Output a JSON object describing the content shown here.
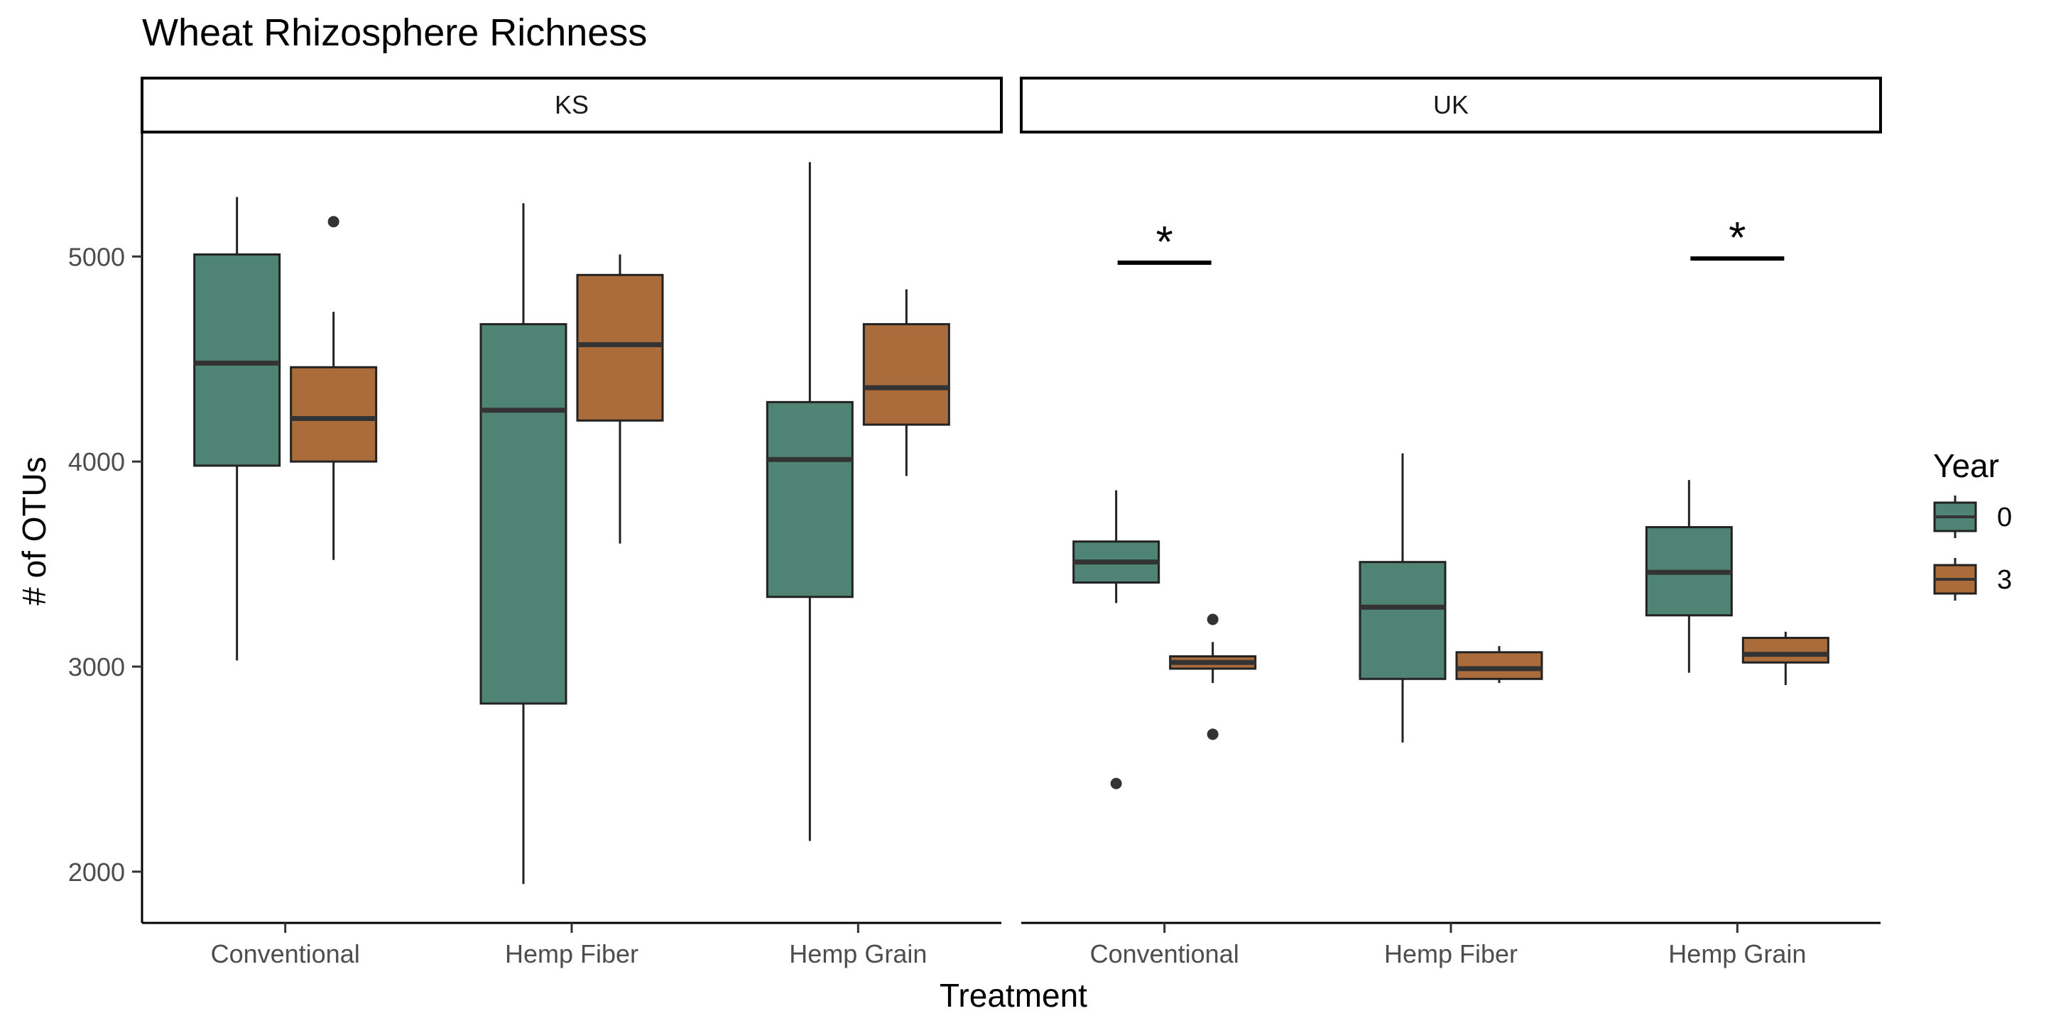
{
  "chart_data": {
    "type": "boxplot",
    "title": "Wheat Rhizosphere Richness",
    "xlabel": "Treatment",
    "ylabel": "# of OTUs",
    "ylim": [
      1750,
      5600
    ],
    "yticks": [
      2000,
      3000,
      4000,
      5000
    ],
    "grid": false,
    "categories": [
      "Conventional",
      "Hemp Fiber",
      "Hemp Grain"
    ],
    "legend": {
      "title": "Year",
      "position": "right",
      "entries": [
        {
          "label": "0",
          "color": "#4f8475"
        },
        {
          "label": "3",
          "color": "#ab6c3b"
        }
      ]
    },
    "facets": [
      {
        "label": "KS",
        "groups": [
          {
            "treatment": "Conventional",
            "year": "0",
            "whisker_low": 3030,
            "q1": 3980,
            "median": 4480,
            "q3": 5010,
            "whisker_high": 5290,
            "outliers": []
          },
          {
            "treatment": "Conventional",
            "year": "3",
            "whisker_low": 3520,
            "q1": 4000,
            "median": 4210,
            "q3": 4460,
            "whisker_high": 4730,
            "outliers": [
              5170
            ]
          },
          {
            "treatment": "Hemp Fiber",
            "year": "0",
            "whisker_low": 1940,
            "q1": 2820,
            "median": 4250,
            "q3": 4670,
            "whisker_high": 5260,
            "outliers": []
          },
          {
            "treatment": "Hemp Fiber",
            "year": "3",
            "whisker_low": 3600,
            "q1": 4200,
            "median": 4570,
            "q3": 4910,
            "whisker_high": 5010,
            "outliers": []
          },
          {
            "treatment": "Hemp Grain",
            "year": "0",
            "whisker_low": 2150,
            "q1": 3340,
            "median": 4010,
            "q3": 4290,
            "whisker_high": 5460,
            "outliers": []
          },
          {
            "treatment": "Hemp Grain",
            "year": "3",
            "whisker_low": 3930,
            "q1": 4180,
            "median": 4360,
            "q3": 4670,
            "whisker_high": 4840,
            "outliers": []
          }
        ],
        "significance": []
      },
      {
        "label": "UK",
        "groups": [
          {
            "treatment": "Conventional",
            "year": "0",
            "whisker_low": 3310,
            "q1": 3410,
            "median": 3510,
            "q3": 3610,
            "whisker_high": 3860,
            "outliers": [
              2430
            ]
          },
          {
            "treatment": "Conventional",
            "year": "3",
            "whisker_low": 2920,
            "q1": 2990,
            "median": 3020,
            "q3": 3050,
            "whisker_high": 3120,
            "outliers": [
              3230,
              2670
            ]
          },
          {
            "treatment": "Hemp Fiber",
            "year": "0",
            "whisker_low": 2630,
            "q1": 2940,
            "median": 3290,
            "q3": 3510,
            "whisker_high": 4040,
            "outliers": []
          },
          {
            "treatment": "Hemp Fiber",
            "year": "3",
            "whisker_low": 2920,
            "q1": 2940,
            "median": 2990,
            "q3": 3070,
            "whisker_high": 3100,
            "outliers": []
          },
          {
            "treatment": "Hemp Grain",
            "year": "0",
            "whisker_low": 2970,
            "q1": 3250,
            "median": 3460,
            "q3": 3680,
            "whisker_high": 3910,
            "outliers": []
          },
          {
            "treatment": "Hemp Grain",
            "year": "3",
            "whisker_low": 2910,
            "q1": 3020,
            "median": 3060,
            "q3": 3140,
            "whisker_high": 3170,
            "outliers": []
          }
        ],
        "significance": [
          {
            "treatment": "Conventional",
            "y": 4970,
            "label": "*"
          },
          {
            "treatment": "Hemp Grain",
            "y": 4990,
            "label": "*"
          }
        ]
      }
    ]
  }
}
